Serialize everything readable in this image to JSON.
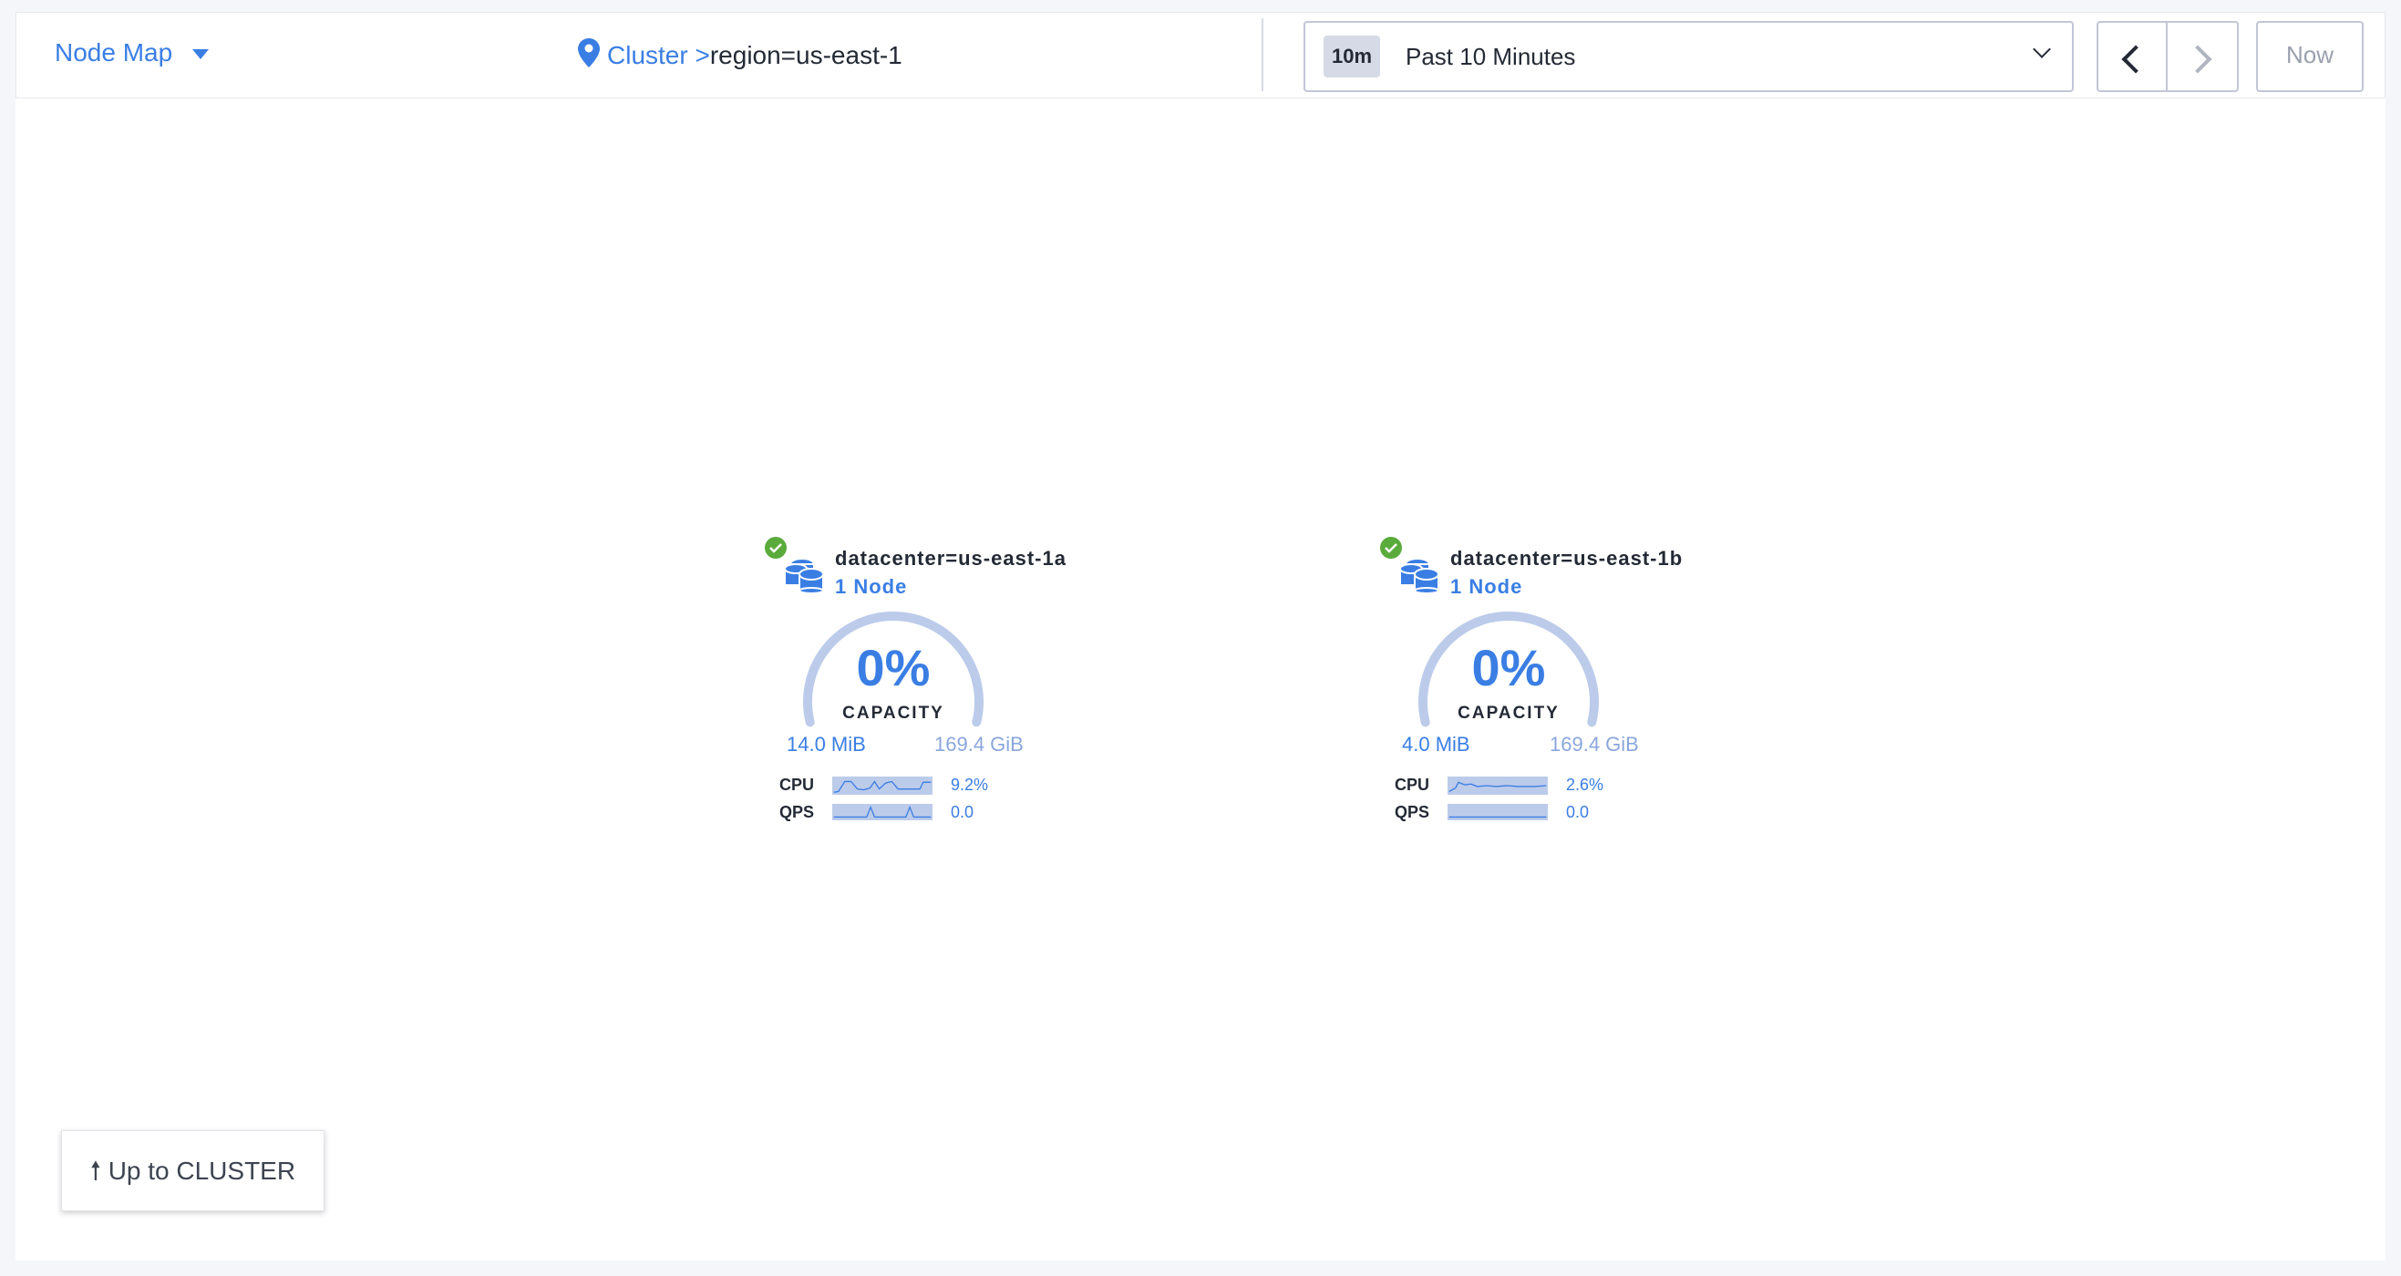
{
  "header": {
    "view_selector": "Node Map",
    "breadcrumb": {
      "root": "Cluster",
      "separator": ">",
      "current": "region=us-east-1"
    },
    "time": {
      "badge": "10m",
      "label": "Past 10 Minutes",
      "now_label": "Now"
    }
  },
  "colors": {
    "accent": "#3a7ee4",
    "healthy": "#5aab3c",
    "gauge_track": "#bccbea"
  },
  "nodes": [
    {
      "title": "datacenter=us-east-1a",
      "count": "1 Node",
      "status": "healthy",
      "capacity_pct": "0%",
      "capacity_label": "CAPACITY",
      "used": "14.0 MiB",
      "total": "169.4 GiB",
      "cpu_label": "CPU",
      "cpu_value": "9.2%",
      "qps_label": "QPS",
      "qps_value": "0.0"
    },
    {
      "title": "datacenter=us-east-1b",
      "count": "1 Node",
      "status": "healthy",
      "capacity_pct": "0%",
      "capacity_label": "CAPACITY",
      "used": "4.0 MiB",
      "total": "169.4 GiB",
      "cpu_label": "CPU",
      "cpu_value": "2.6%",
      "qps_label": "QPS",
      "qps_value": "0.0"
    }
  ],
  "footer": {
    "up_button": "Up to CLUSTER"
  }
}
